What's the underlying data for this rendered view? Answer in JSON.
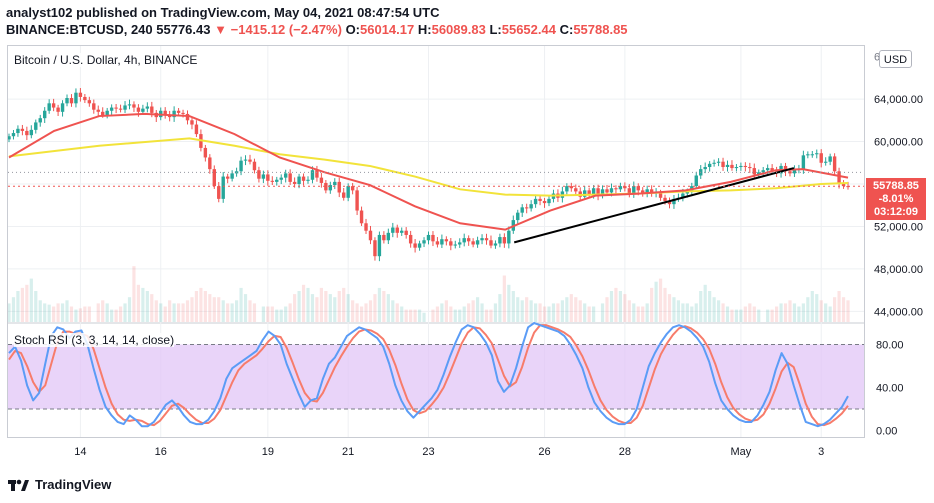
{
  "header": {
    "publish_line": "analyst102 published on TradingView.com, May 04, 2021 08:47:54 UTC",
    "symbol": "BINANCE:BTCUSD, 240",
    "last": "55776.43",
    "change_arrow": "▼",
    "change": "−1415.12 (−2.47%)",
    "o_label": "O:",
    "o_value": "56014.17",
    "h_label": "H:",
    "h_value": "56089.83",
    "l_label": "L:",
    "l_value": "55652.44",
    "c_label": "C:",
    "c_value": "55788.85"
  },
  "main_pane": {
    "title": "Bitcoin / U.S. Dollar, 4h, BINANCE",
    "currency_button": "USD",
    "price_tag": {
      "price": "55788.85",
      "change_pct": "-8.01%",
      "countdown": "03:12:09"
    }
  },
  "rsi_pane": {
    "title": "Stoch RSI (3, 3, 14, 14, close)"
  },
  "brand": {
    "name": "TradingView",
    "icon": "tradingview-logo-icon"
  },
  "colors": {
    "up": "#26a69a",
    "down": "#ef5350",
    "ma_fast": "#ef5350",
    "ma_slow": "#f2e33a",
    "k_line": "#5b9cf6",
    "d_line": "#f77c6b",
    "rsi_band": "#e1c6f7"
  },
  "chart_data": [
    {
      "type": "candlestick",
      "title": "Bitcoin / U.S. Dollar, 4h, BINANCE",
      "x_tick_labels": [
        "14",
        "16",
        "19",
        "21",
        "23",
        "26",
        "28",
        "May",
        "3"
      ],
      "y_ticks": [
        44000,
        48000,
        52000,
        56000,
        60000,
        64000
      ],
      "ylim": [
        43000,
        69000
      ],
      "close_series": [
        60500,
        60800,
        61200,
        61000,
        60600,
        61100,
        61800,
        62200,
        62900,
        63600,
        63200,
        62800,
        63600,
        64100,
        63600,
        64600,
        64200,
        63900,
        63600,
        63000,
        62800,
        62500,
        62900,
        63200,
        63100,
        63000,
        63400,
        63500,
        63200,
        62800,
        63100,
        63300,
        62700,
        62300,
        62900,
        62500,
        62300,
        62900,
        62700,
        62600,
        62000,
        61600,
        60700,
        59400,
        58500,
        57400,
        55800,
        54600,
        56700,
        56500,
        57000,
        57200,
        58200,
        58300,
        58100,
        57300,
        56500,
        56900,
        56300,
        56200,
        56400,
        56600,
        57000,
        56200,
        56000,
        56700,
        56300,
        56400,
        57300,
        56600,
        56100,
        55400,
        55900,
        56200,
        55200,
        54700,
        55800,
        55400,
        53500,
        52300,
        51600,
        50700,
        49200,
        51200,
        50700,
        51400,
        51900,
        51400,
        51600,
        51200,
        50400,
        50000,
        50400,
        50700,
        51200,
        50600,
        50300,
        50800,
        50600,
        50200,
        50300,
        50500,
        50900,
        50600,
        50300,
        50700,
        50900,
        50700,
        50200,
        50400,
        51000,
        50400,
        51600,
        52600,
        53300,
        53800,
        53700,
        54100,
        54600,
        54400,
        54200,
        54600,
        55100,
        54700,
        55300,
        55800,
        55600,
        55300,
        54800,
        55400,
        55000,
        55600,
        54900,
        55500,
        55200,
        55600,
        55500,
        55800,
        55600,
        55100,
        55800,
        55400,
        55100,
        55500,
        55200,
        55200,
        54700,
        54400,
        54100,
        54600,
        54700,
        55100,
        55300,
        55800,
        56800,
        57400,
        57600,
        57900,
        58000,
        58100,
        57600,
        57800,
        57500,
        57600,
        57700,
        57600,
        57500,
        56900,
        57100,
        57300,
        57500,
        57200,
        57000,
        57700,
        57200,
        57000,
        57400,
        57400,
        58700,
        58800,
        58800,
        58900,
        58000,
        58100,
        58600,
        57200,
        56000,
        55800,
        55789
      ],
      "ma_fast": {
        "x": [
          0,
          10,
          20,
          30,
          40,
          50,
          60,
          70,
          80,
          90,
          100,
          110,
          120,
          130,
          140,
          150,
          160,
          170,
          176,
          186
        ],
        "y": [
          58500,
          61000,
          62400,
          62600,
          62400,
          60700,
          58500,
          57100,
          55900,
          53900,
          52300,
          51700,
          53500,
          54900,
          55100,
          55400,
          56200,
          57300,
          57400,
          56600
        ]
      },
      "ma_slow": {
        "x": [
          0,
          20,
          40,
          50,
          60,
          70,
          80,
          90,
          100,
          110,
          120,
          130,
          140,
          150,
          160,
          170,
          180,
          186
        ],
        "y": [
          58600,
          59600,
          60300,
          59600,
          58800,
          58300,
          57700,
          56700,
          55500,
          55000,
          54900,
          55000,
          55100,
          55300,
          55400,
          55600,
          56000,
          56100
        ]
      },
      "trendline": {
        "points": [
          [
            50500,
            49900
          ],
          [
            57500,
            57300
          ]
        ],
        "note_x": [
          112,
          174
        ]
      },
      "volume_relative": [
        0.3,
        0.4,
        0.5,
        0.55,
        0.6,
        0.7,
        0.5,
        0.35,
        0.3,
        0.28,
        0.25,
        0.3,
        0.3,
        0.35,
        0.25,
        0.2,
        0.22,
        0.25,
        0.25,
        0.3,
        0.35,
        0.3,
        0.2,
        0.2,
        0.25,
        0.3,
        0.4,
        0.9,
        0.6,
        0.55,
        0.5,
        0.45,
        0.35,
        0.3,
        0.25,
        0.35,
        0.3,
        0.3,
        0.3,
        0.35,
        0.4,
        0.5,
        0.55,
        0.5,
        0.45,
        0.4,
        0.4,
        0.35,
        0.3,
        0.3,
        0.35,
        0.55,
        0.45,
        0.35,
        0.3,
        0.25,
        0.25,
        0.25,
        0.2,
        0.2,
        0.25,
        0.3,
        0.45,
        0.5,
        0.6,
        0.55,
        0.45,
        0.4,
        0.55,
        0.5,
        0.45,
        0.4,
        0.5,
        0.55,
        0.45,
        0.35,
        0.3,
        0.25,
        0.3,
        0.35,
        0.45,
        0.55,
        0.5,
        0.45,
        0.35,
        0.3,
        0.25,
        0.2,
        0.2,
        0.2,
        0.2,
        0.15,
        0.2,
        0.25,
        0.3,
        0.35,
        0.25,
        0.2,
        0.2,
        0.25,
        0.3,
        0.35,
        0.4,
        0.3,
        0.2,
        0.2,
        0.3,
        0.45,
        0.75,
        0.6,
        0.5,
        0.4,
        0.35,
        0.4,
        0.35,
        0.3,
        0.3,
        0.25,
        0.25,
        0.3,
        0.3,
        0.35,
        0.4,
        0.45,
        0.4,
        0.35,
        0.3,
        0.25,
        0.25,
        0.3,
        0.4,
        0.5,
        0.55,
        0.5,
        0.45,
        0.35,
        0.3,
        0.25,
        0.25,
        0.3,
        0.55,
        0.65,
        0.7,
        0.55,
        0.45,
        0.4,
        0.35,
        0.3,
        0.3,
        0.25,
        0.3,
        0.5,
        0.6,
        0.5,
        0.4,
        0.35,
        0.3,
        0.25,
        0.2,
        0.2,
        0.2,
        0.25,
        0.3,
        0.25,
        0.2,
        0.2,
        0.2,
        0.25,
        0.3,
        0.3,
        0.35,
        0.3,
        0.25,
        0.3,
        0.4,
        0.5,
        0.45,
        0.35,
        0.3,
        0.25,
        0.4,
        0.5,
        0.4,
        0.35
      ],
      "current_price_line": 55788.85,
      "prev_close_line": 57100
    },
    {
      "type": "line",
      "title": "Stoch RSI (3, 3, 14, 14, close)",
      "y_ticks": [
        0,
        40,
        80
      ],
      "ylim": [
        -6,
        100
      ],
      "band": [
        20,
        80
      ],
      "series": [
        {
          "name": "K",
          "values": [
            72,
            78,
            65,
            42,
            28,
            35,
            62,
            88,
            96,
            94,
            86,
            92,
            93,
            80,
            58,
            38,
            22,
            14,
            8,
            6,
            14,
            10,
            4,
            4,
            8,
            16,
            24,
            28,
            22,
            14,
            8,
            6,
            6,
            10,
            18,
            30,
            48,
            58,
            62,
            66,
            70,
            74,
            84,
            92,
            88,
            80,
            62,
            48,
            34,
            22,
            28,
            30,
            48,
            62,
            68,
            78,
            88,
            92,
            96,
            94,
            90,
            86,
            78,
            62,
            42,
            28,
            18,
            12,
            18,
            24,
            30,
            38,
            52,
            68,
            82,
            94,
            98,
            96,
            90,
            82,
            70,
            46,
            36,
            42,
            58,
            78,
            96,
            100,
            98,
            96,
            94,
            92,
            88,
            80,
            70,
            58,
            40,
            26,
            18,
            12,
            8,
            6,
            6,
            10,
            20,
            40,
            60,
            72,
            82,
            90,
            96,
            98,
            96,
            92,
            86,
            78,
            64,
            44,
            28,
            20,
            14,
            10,
            8,
            8,
            14,
            24,
            36,
            56,
            72,
            62,
            42,
            24,
            8,
            6,
            4,
            6,
            10,
            16,
            22,
            32
          ],
          "legend": ""
        },
        {
          "name": "D",
          "values": [
            66,
            74,
            72,
            60,
            45,
            36,
            42,
            62,
            82,
            92,
            92,
            90,
            90,
            88,
            76,
            58,
            40,
            25,
            15,
            10,
            9,
            10,
            9,
            6,
            5,
            9,
            16,
            23,
            25,
            21,
            15,
            10,
            7,
            7,
            11,
            19,
            32,
            45,
            56,
            62,
            66,
            70,
            76,
            83,
            88,
            87,
            77,
            63,
            48,
            35,
            28,
            27,
            35,
            47,
            59,
            69,
            78,
            86,
            92,
            94,
            93,
            90,
            85,
            75,
            61,
            44,
            29,
            19,
            16,
            18,
            24,
            31,
            40,
            53,
            67,
            81,
            91,
            96,
            95,
            89,
            81,
            66,
            51,
            41,
            45,
            59,
            77,
            91,
            98,
            98,
            96,
            94,
            91,
            87,
            79,
            69,
            56,
            41,
            28,
            19,
            13,
            9,
            7,
            7,
            12,
            23,
            40,
            57,
            71,
            81,
            89,
            95,
            97,
            95,
            91,
            85,
            76,
            62,
            45,
            31,
            21,
            15,
            11,
            9,
            10,
            15,
            25,
            39,
            55,
            63,
            59,
            43,
            25,
            13,
            6,
            5,
            7,
            11,
            16,
            23
          ]
        }
      ]
    }
  ]
}
